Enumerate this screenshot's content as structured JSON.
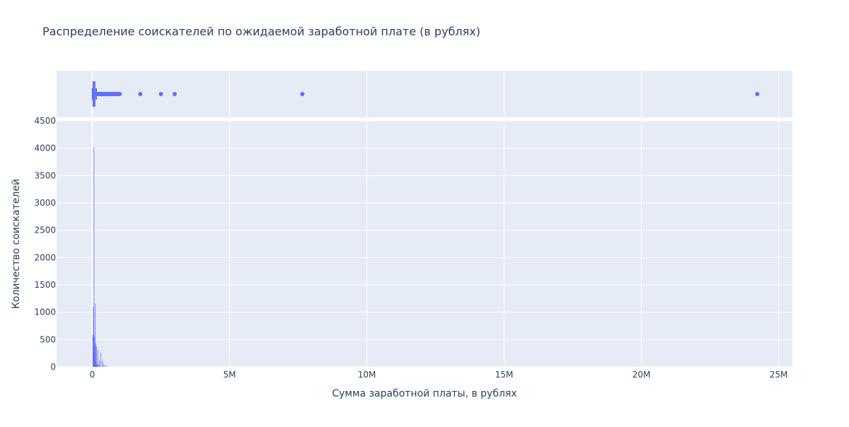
{
  "chart_data": {
    "type": "bar",
    "title": "Распределение соискателей по ожидаемой заработной плате (в рублях)",
    "xlabel": "Сумма заработной платы, в рублях",
    "ylabel": "Количество соискателей",
    "xlim": [
      -1300000,
      25500000
    ],
    "ylim": [
      0,
      4500
    ],
    "x_ticks": [
      {
        "value": 0,
        "label": "0"
      },
      {
        "value": 5000000,
        "label": "5M"
      },
      {
        "value": 10000000,
        "label": "10M"
      },
      {
        "value": 15000000,
        "label": "15M"
      },
      {
        "value": 20000000,
        "label": "20M"
      },
      {
        "value": 25000000,
        "label": "25M"
      }
    ],
    "y_ticks": [
      {
        "value": 0,
        "label": "0"
      },
      {
        "value": 500,
        "label": "500"
      },
      {
        "value": 1000,
        "label": "1000"
      },
      {
        "value": 1500,
        "label": "1500"
      },
      {
        "value": 2000,
        "label": "2000"
      },
      {
        "value": 2500,
        "label": "2500"
      },
      {
        "value": 3000,
        "label": "3000"
      },
      {
        "value": 3500,
        "label": "3500"
      },
      {
        "value": 4000,
        "label": "4000"
      },
      {
        "value": 4500,
        "label": "4500"
      }
    ],
    "grid": true,
    "color": "#636efa",
    "histogram": {
      "bin_width": 10000,
      "bins": [
        {
          "x": 10000,
          "count": 590
        },
        {
          "x": 20000,
          "count": 520
        },
        {
          "x": 30000,
          "count": 1100
        },
        {
          "x": 40000,
          "count": 300
        },
        {
          "x": 50000,
          "count": 4020
        },
        {
          "x": 60000,
          "count": 250
        },
        {
          "x": 70000,
          "count": 550
        },
        {
          "x": 80000,
          "count": 380
        },
        {
          "x": 90000,
          "count": 120
        },
        {
          "x": 100000,
          "count": 1160
        },
        {
          "x": 110000,
          "count": 90
        },
        {
          "x": 120000,
          "count": 430
        },
        {
          "x": 130000,
          "count": 60
        },
        {
          "x": 150000,
          "count": 370
        },
        {
          "x": 170000,
          "count": 50
        },
        {
          "x": 200000,
          "count": 310
        },
        {
          "x": 220000,
          "count": 40
        },
        {
          "x": 250000,
          "count": 110
        },
        {
          "x": 300000,
          "count": 260
        },
        {
          "x": 350000,
          "count": 120
        },
        {
          "x": 400000,
          "count": 60
        },
        {
          "x": 450000,
          "count": 25
        },
        {
          "x": 500000,
          "count": 30
        }
      ]
    },
    "box": {
      "min": 8000,
      "q1": 35000,
      "median": 50000,
      "q3": 80000,
      "upper_fence": 145000,
      "outliers": [
        160000,
        180000,
        200000,
        230000,
        250000,
        280000,
        300000,
        330000,
        350000,
        380000,
        400000,
        420000,
        450000,
        480000,
        500000,
        530000,
        550000,
        580000,
        600000,
        630000,
        650000,
        700000,
        750000,
        800000,
        850000,
        900000,
        950000,
        1000000,
        1750000,
        2500000,
        3000000,
        7650000,
        24220000
      ]
    }
  }
}
